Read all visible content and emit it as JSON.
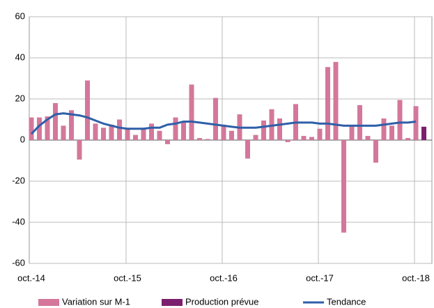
{
  "chart_data": {
    "type": "bar",
    "categories": [
      "oct.-14",
      null,
      null,
      null,
      null,
      null,
      null,
      null,
      null,
      null,
      null,
      null,
      "oct.-15",
      null,
      null,
      null,
      null,
      null,
      null,
      null,
      null,
      null,
      null,
      null,
      "oct.-16",
      null,
      null,
      null,
      null,
      null,
      null,
      null,
      null,
      null,
      null,
      null,
      "oct.-17",
      null,
      null,
      null,
      null,
      null,
      null,
      null,
      null,
      null,
      null,
      null,
      "oct.-18",
      null
    ],
    "series": [
      {
        "name": "Variation sur M-1",
        "type": "bar",
        "color": "#d4779b",
        "values": [
          11,
          11,
          11.5,
          18,
          7,
          14.5,
          -9.5,
          29,
          8,
          6,
          7.5,
          10,
          5.5,
          2.5,
          6,
          8,
          4.5,
          -2,
          11,
          9,
          27,
          1,
          0.5,
          20.5,
          7.5,
          4.5,
          12.5,
          -9,
          2.5,
          9.5,
          15,
          10.5,
          -1,
          17.5,
          2,
          1.5,
          5.5,
          35.5,
          38,
          -45,
          7,
          17,
          2,
          -11,
          10.5,
          7,
          19.5,
          1,
          16.5,
          null
        ]
      },
      {
        "name": "Production prévue",
        "type": "bar",
        "color": "#7b1f6e",
        "values": [
          null,
          null,
          null,
          null,
          null,
          null,
          null,
          null,
          null,
          null,
          null,
          null,
          null,
          null,
          null,
          null,
          null,
          null,
          null,
          null,
          null,
          null,
          null,
          null,
          null,
          null,
          null,
          null,
          null,
          null,
          null,
          null,
          null,
          null,
          null,
          null,
          null,
          null,
          null,
          null,
          null,
          null,
          null,
          null,
          null,
          null,
          null,
          null,
          null,
          6.5
        ]
      },
      {
        "name": "Tendance",
        "type": "line",
        "color": "#2e5fa8",
        "values": [
          3,
          7,
          10,
          12.5,
          13,
          12.5,
          12,
          11,
          9.5,
          8,
          7,
          6,
          5.5,
          5.5,
          5.5,
          6,
          6,
          7.5,
          8,
          9,
          9,
          8.5,
          8,
          7.5,
          7,
          6.5,
          6,
          6,
          6,
          6.5,
          7,
          7.5,
          8,
          8.5,
          8.5,
          8.5,
          8,
          8,
          7.5,
          7,
          7,
          7,
          7,
          7,
          7.5,
          8,
          8.5,
          8.5,
          9,
          null
        ]
      }
    ],
    "ylim": [
      -60,
      60
    ],
    "yticks": [
      -60,
      -40,
      -20,
      0,
      20,
      40,
      60
    ],
    "grid": true
  }
}
